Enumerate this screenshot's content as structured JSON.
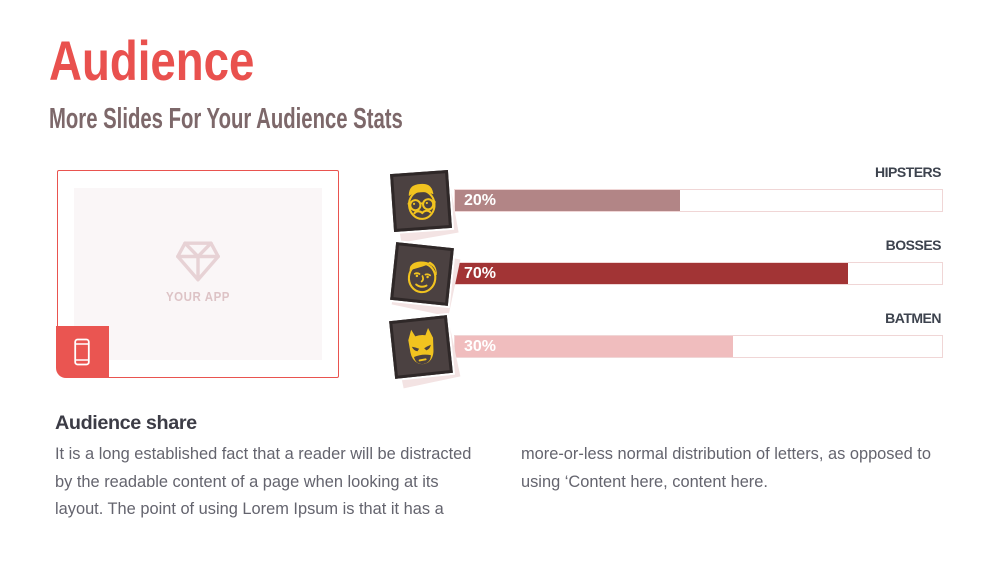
{
  "slide": {
    "title": "Audience",
    "subtitle": "More Slides For Your Audience Stats"
  },
  "media_box": {
    "placeholder_label": "YOUR APP"
  },
  "chart_data": {
    "type": "bar",
    "orientation": "horizontal",
    "categories": [
      "HIPSTERS",
      "BOSSES",
      "BATMEN"
    ],
    "values": [
      20,
      70,
      30
    ],
    "unit": "%",
    "value_labels": [
      "20%",
      "70%",
      "30%"
    ],
    "bar_colors": [
      "#b28586",
      "#a23435",
      "#f0bdbe"
    ],
    "visual_fill_fractions": [
      0.463,
      0.806,
      0.571
    ],
    "track_range": [
      0,
      100
    ],
    "legend": "none",
    "grid": false,
    "icons": [
      "hipster-face-icon",
      "boss-face-icon",
      "batman-mask-icon"
    ]
  },
  "section": {
    "heading": "Audience share",
    "columns": [
      {
        "lines": [
          "It is a long established fact that a reader will be distracted",
          "by the readable content of a page when looking at its",
          "layout. The point of using Lorem Ipsum is that it has a"
        ]
      },
      {
        "lines": [
          "more-or-less normal distribution of letters, as opposed to",
          "using ‘Content here, content here."
        ]
      }
    ]
  },
  "colors": {
    "accent": "#e9514e",
    "subtitle": "#7d686a",
    "bar_label": "#45454e",
    "body_text": "#64646e",
    "tile_background": "#4b4141",
    "face_yellow": "#f1c31f",
    "placeholder_pink": "#e7d2d5"
  }
}
